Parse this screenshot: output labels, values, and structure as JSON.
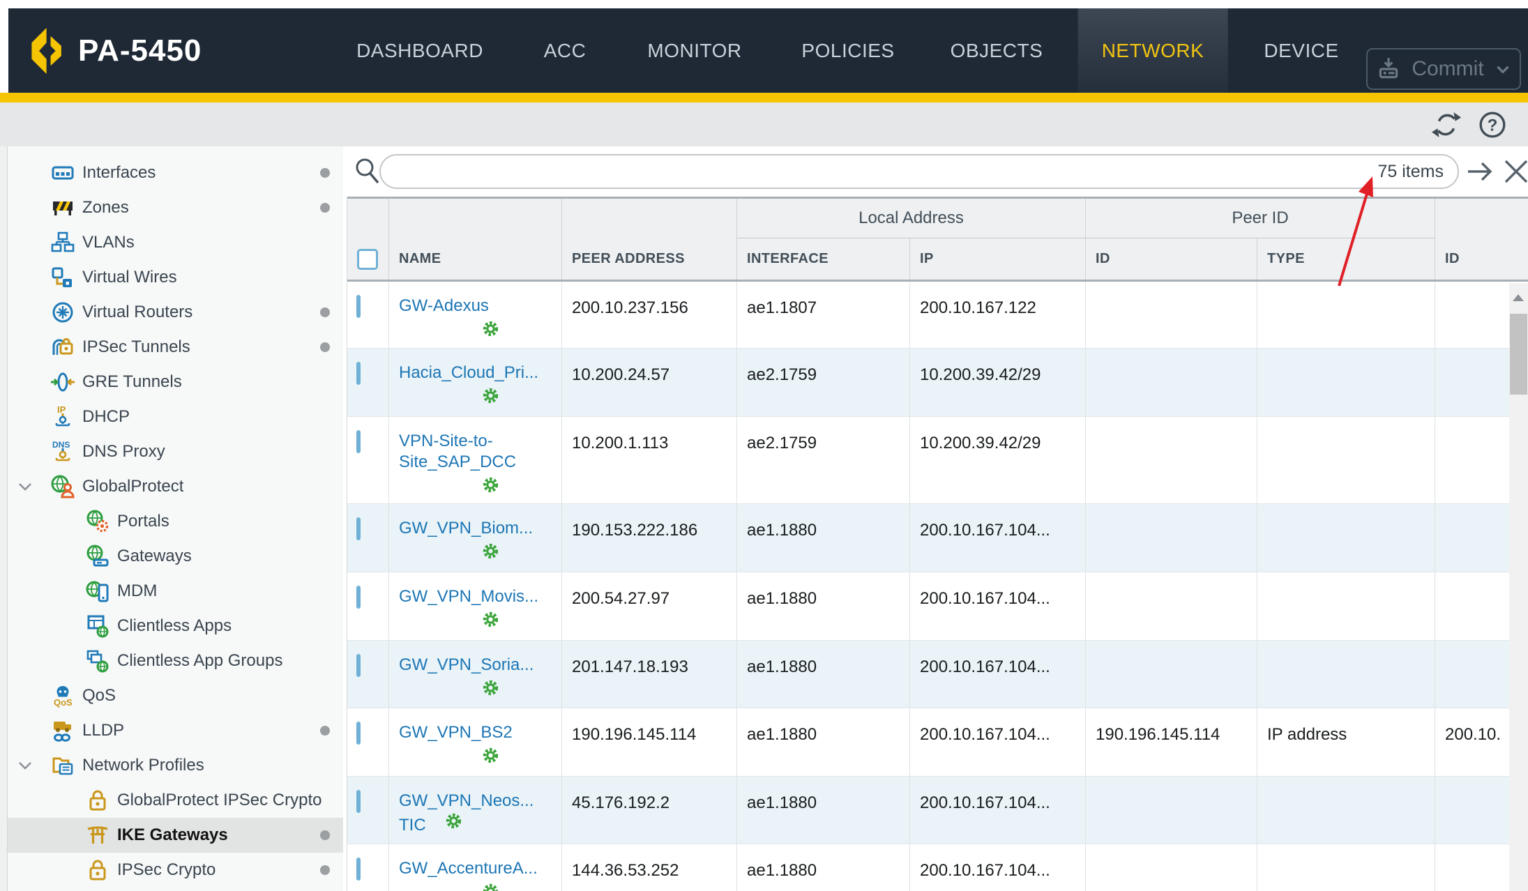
{
  "nav": {
    "model": "PA-5450",
    "tabs": [
      {
        "label": "DASHBOARD",
        "active": false
      },
      {
        "label": "ACC",
        "active": false
      },
      {
        "label": "MONITOR",
        "active": false
      },
      {
        "label": "POLICIES",
        "active": false
      },
      {
        "label": "OBJECTS",
        "active": false
      },
      {
        "label": "NETWORK",
        "active": true
      },
      {
        "label": "DEVICE",
        "active": false
      }
    ],
    "commit_label": "Commit"
  },
  "toolbar": {
    "icons": [
      "refresh-icon",
      "help-icon"
    ]
  },
  "sidebar": {
    "items": [
      {
        "label": "Interfaces",
        "icon": "interfaces-icon",
        "level": 0,
        "dot": true
      },
      {
        "label": "Zones",
        "icon": "zones-icon",
        "level": 0,
        "dot": true
      },
      {
        "label": "VLANs",
        "icon": "vlans-icon",
        "level": 0
      },
      {
        "label": "Virtual Wires",
        "icon": "virtual-wires-icon",
        "level": 0
      },
      {
        "label": "Virtual Routers",
        "icon": "virtual-routers-icon",
        "level": 0,
        "dot": true
      },
      {
        "label": "IPSec Tunnels",
        "icon": "ipsec-tunnels-icon",
        "level": 0,
        "dot": true
      },
      {
        "label": "GRE Tunnels",
        "icon": "gre-tunnels-icon",
        "level": 0
      },
      {
        "label": "DHCP",
        "icon": "dhcp-icon",
        "level": 0
      },
      {
        "label": "DNS Proxy",
        "icon": "dns-proxy-icon",
        "level": 0
      },
      {
        "label": "GlobalProtect",
        "icon": "globalprotect-icon",
        "level": 0,
        "chevron": true
      },
      {
        "label": "Portals",
        "icon": "portals-icon",
        "level": 1
      },
      {
        "label": "Gateways",
        "icon": "gateways-icon",
        "level": 1
      },
      {
        "label": "MDM",
        "icon": "mdm-icon",
        "level": 1
      },
      {
        "label": "Clientless Apps",
        "icon": "clientless-apps-icon",
        "level": 1
      },
      {
        "label": "Clientless App Groups",
        "icon": "clientless-app-groups-icon",
        "level": 1
      },
      {
        "label": "QoS",
        "icon": "qos-icon",
        "level": 0
      },
      {
        "label": "LLDP",
        "icon": "lldp-icon",
        "level": 0,
        "dot": true
      },
      {
        "label": "Network Profiles",
        "icon": "network-profiles-icon",
        "level": 0,
        "chevron": true
      },
      {
        "label": "GlobalProtect IPSec Crypto",
        "icon": "lock-icon",
        "level": 1
      },
      {
        "label": "IKE Gateways",
        "icon": "ike-gateways-icon",
        "level": 1,
        "dot": true,
        "selected": true
      },
      {
        "label": "IPSec Crypto",
        "icon": "lock-icon",
        "level": 1,
        "dot": true
      }
    ]
  },
  "search": {
    "value": "",
    "items_count": "75 items"
  },
  "table": {
    "group_headers": {
      "local_address": "Local Address",
      "peer_id": "Peer ID"
    },
    "columns": [
      "NAME",
      "PEER ADDRESS",
      "INTERFACE",
      "IP",
      "ID",
      "TYPE",
      "ID"
    ],
    "rows": [
      {
        "name": "GW-Adexus",
        "peer_address": "200.10.237.156",
        "interface": "ae1.1807",
        "ip": "200.10.167.122",
        "peer_id": "",
        "peer_id_type": "",
        "id": ""
      },
      {
        "name": "Hacia_Cloud_Pri...",
        "peer_address": "10.200.24.57",
        "interface": "ae2.1759",
        "ip": "10.200.39.42/29",
        "peer_id": "",
        "peer_id_type": "",
        "id": ""
      },
      {
        "name": "VPN-Site-to-\nSite_SAP_DCC",
        "peer_address": "10.200.1.113",
        "interface": "ae2.1759",
        "ip": "10.200.39.42/29",
        "peer_id": "",
        "peer_id_type": "",
        "id": ""
      },
      {
        "name": "GW_VPN_Biom...",
        "peer_address": "190.153.222.186",
        "interface": "ae1.1880",
        "ip": "200.10.167.104...",
        "peer_id": "",
        "peer_id_type": "",
        "id": ""
      },
      {
        "name": "GW_VPN_Movis...",
        "peer_address": "200.54.27.97",
        "interface": "ae1.1880",
        "ip": "200.10.167.104...",
        "peer_id": "",
        "peer_id_type": "",
        "id": ""
      },
      {
        "name": "GW_VPN_Soria...",
        "peer_address": "201.147.18.193",
        "interface": "ae1.1880",
        "ip": "200.10.167.104...",
        "peer_id": "",
        "peer_id_type": "",
        "id": ""
      },
      {
        "name": "GW_VPN_BS2",
        "peer_address": "190.196.145.114",
        "interface": "ae1.1880",
        "ip": "200.10.167.104...",
        "peer_id": "190.196.145.114",
        "peer_id_type": "IP address",
        "id": "200.10."
      },
      {
        "name": "GW_VPN_Neos...\nTIC",
        "peer_address": "45.176.192.2",
        "interface": "ae1.1880",
        "ip": "200.10.167.104...",
        "peer_id": "",
        "peer_id_type": "",
        "id": "",
        "gear_inline": true
      },
      {
        "name": "GW_AccentureA...",
        "peer_address": "144.36.53.252",
        "interface": "ae1.1880",
        "ip": "200.10.167.104...",
        "peer_id": "",
        "peer_id_type": "",
        "id": ""
      }
    ]
  },
  "annotation": {
    "red_arrow_points_to": "75 items"
  }
}
